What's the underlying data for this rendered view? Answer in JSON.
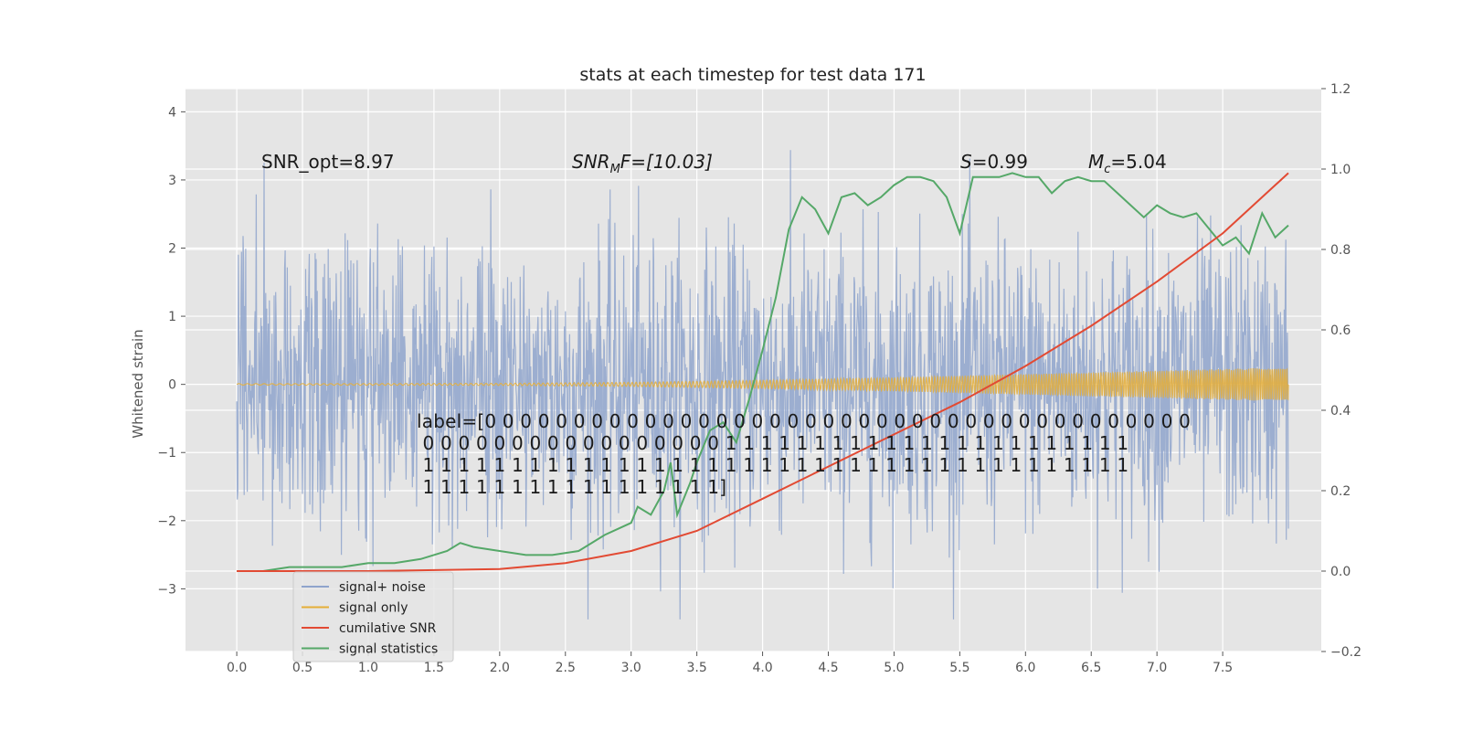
{
  "chart_data": {
    "type": "line",
    "title": "stats at each timestep for test data 171",
    "xlabel": "",
    "ylabel": "Whitened strain",
    "xlim": [
      -0.39,
      8.25
    ],
    "ylim": [
      -3.92,
      4.34
    ],
    "y2lim": [
      -0.2,
      1.2
    ],
    "x_ticks": [
      0.0,
      0.5,
      1.0,
      1.5,
      2.0,
      2.5,
      3.0,
      3.5,
      4.0,
      4.5,
      5.0,
      5.5,
      6.0,
      6.5,
      7.0,
      7.5
    ],
    "x_tick_labels": [
      "0.0",
      "0.5",
      "1.0",
      "1.5",
      "2.0",
      "2.5",
      "3.0",
      "3.5",
      "4.0",
      "4.5",
      "5.0",
      "5.5",
      "6.0",
      "6.5",
      "7.0",
      "7.5"
    ],
    "y_ticks": [
      -3,
      -2,
      -1,
      0,
      1,
      2,
      3,
      4
    ],
    "y_tick_labels": [
      "−3",
      "−2",
      "−1",
      "0",
      "1",
      "2",
      "3",
      "4"
    ],
    "y2_ticks": [
      -0.2,
      0.0,
      0.2,
      0.4,
      0.6,
      0.8,
      1.0,
      1.2
    ],
    "y2_tick_labels": [
      "−0.2",
      "0.0",
      "0.2",
      "0.4",
      "0.6",
      "0.8",
      "1.0",
      "1.2"
    ],
    "grid": true,
    "legend_position": "lower-left",
    "series": [
      {
        "name": "signal+ noise",
        "axis": "left",
        "color": "#8fa4cc",
        "description": "noisy whitened strain, roughly unit-variance noise spanning about -3.5 to 4.0"
      },
      {
        "name": "signal only",
        "axis": "left",
        "color": "#e5ae38",
        "amplitude_x": [
          0.0,
          2.0,
          3.0,
          4.0,
          5.0,
          6.0,
          7.0,
          8.0
        ],
        "amplitude": [
          0.01,
          0.015,
          0.03,
          0.06,
          0.1,
          0.15,
          0.2,
          0.25
        ]
      },
      {
        "name": "cumilative SNR",
        "axis": "right",
        "color": "#e24a33",
        "x": [
          0.0,
          1.0,
          2.0,
          2.5,
          3.0,
          3.5,
          4.0,
          4.5,
          5.0,
          5.5,
          6.0,
          6.5,
          7.0,
          7.5,
          8.0
        ],
        "values": [
          0.0,
          0.0,
          0.005,
          0.02,
          0.05,
          0.1,
          0.18,
          0.26,
          0.34,
          0.42,
          0.51,
          0.61,
          0.72,
          0.84,
          0.99
        ]
      },
      {
        "name": "signal statistics",
        "axis": "right",
        "color": "#55a868",
        "x": [
          0.0,
          0.2,
          0.4,
          0.6,
          0.8,
          1.0,
          1.2,
          1.4,
          1.6,
          1.7,
          1.8,
          2.0,
          2.2,
          2.4,
          2.6,
          2.8,
          3.0,
          3.05,
          3.15,
          3.25,
          3.3,
          3.35,
          3.45,
          3.5,
          3.6,
          3.7,
          3.8,
          3.9,
          4.0,
          4.1,
          4.2,
          4.25,
          4.3,
          4.4,
          4.5,
          4.6,
          4.7,
          4.8,
          4.9,
          5.0,
          5.1,
          5.2,
          5.3,
          5.4,
          5.5,
          5.6,
          5.7,
          5.8,
          5.9,
          6.0,
          6.1,
          6.2,
          6.3,
          6.4,
          6.5,
          6.6,
          6.7,
          6.8,
          6.9,
          7.0,
          7.1,
          7.2,
          7.3,
          7.4,
          7.5,
          7.6,
          7.7,
          7.8,
          7.9,
          8.0
        ],
        "values": [
          0.0,
          0.0,
          0.01,
          0.01,
          0.01,
          0.02,
          0.02,
          0.03,
          0.05,
          0.07,
          0.06,
          0.05,
          0.04,
          0.04,
          0.05,
          0.09,
          0.12,
          0.16,
          0.14,
          0.2,
          0.27,
          0.14,
          0.22,
          0.27,
          0.35,
          0.37,
          0.32,
          0.43,
          0.55,
          0.68,
          0.85,
          0.89,
          0.93,
          0.9,
          0.84,
          0.93,
          0.94,
          0.91,
          0.93,
          0.96,
          0.98,
          0.98,
          0.97,
          0.93,
          0.84,
          0.98,
          0.98,
          0.98,
          0.99,
          0.98,
          0.98,
          0.94,
          0.97,
          0.98,
          0.97,
          0.97,
          0.94,
          0.91,
          0.88,
          0.91,
          0.89,
          0.88,
          0.89,
          0.85,
          0.81,
          0.83,
          0.79,
          0.89,
          0.83,
          0.86
        ]
      }
    ],
    "annotations": {
      "snr_opt": "SNR_opt=8.97",
      "snr_mf_main": "SNR",
      "snr_mf_sub": "M",
      "snr_mf_rest": "F=[10.03]",
      "s_main": "S",
      "s_rest": "=0.99",
      "mc_main": "M",
      "mc_sub": "c",
      "mc_rest": "=5.04",
      "label_lines": [
        "label=[0 0 0 0 0 0 0 0 0 0 0 0 0 0 0 0 0 0 0 0 0 0 0 0 0 0 0 0 0 0 0 0 0 0 0 0 0 0 0 0",
        " 0 0 0 0 0 0 0 0 0 0 0 0 0 0 0 0 0 1 1 1 1 1 1 1 1 1 1 1 1 1 1 1 1 1 1 1 1 1 1 1",
        " 1 1 1 1 1 1 1 1 1 1 1 1 1 1 1 1 1 1 1 1 1 1 1 1 1 1 1 1 1 1 1 1 1 1 1 1 1 1 1 1",
        " 1 1 1 1 1 1 1 1 1 1 1 1 1 1 1 1 1]"
      ]
    }
  }
}
